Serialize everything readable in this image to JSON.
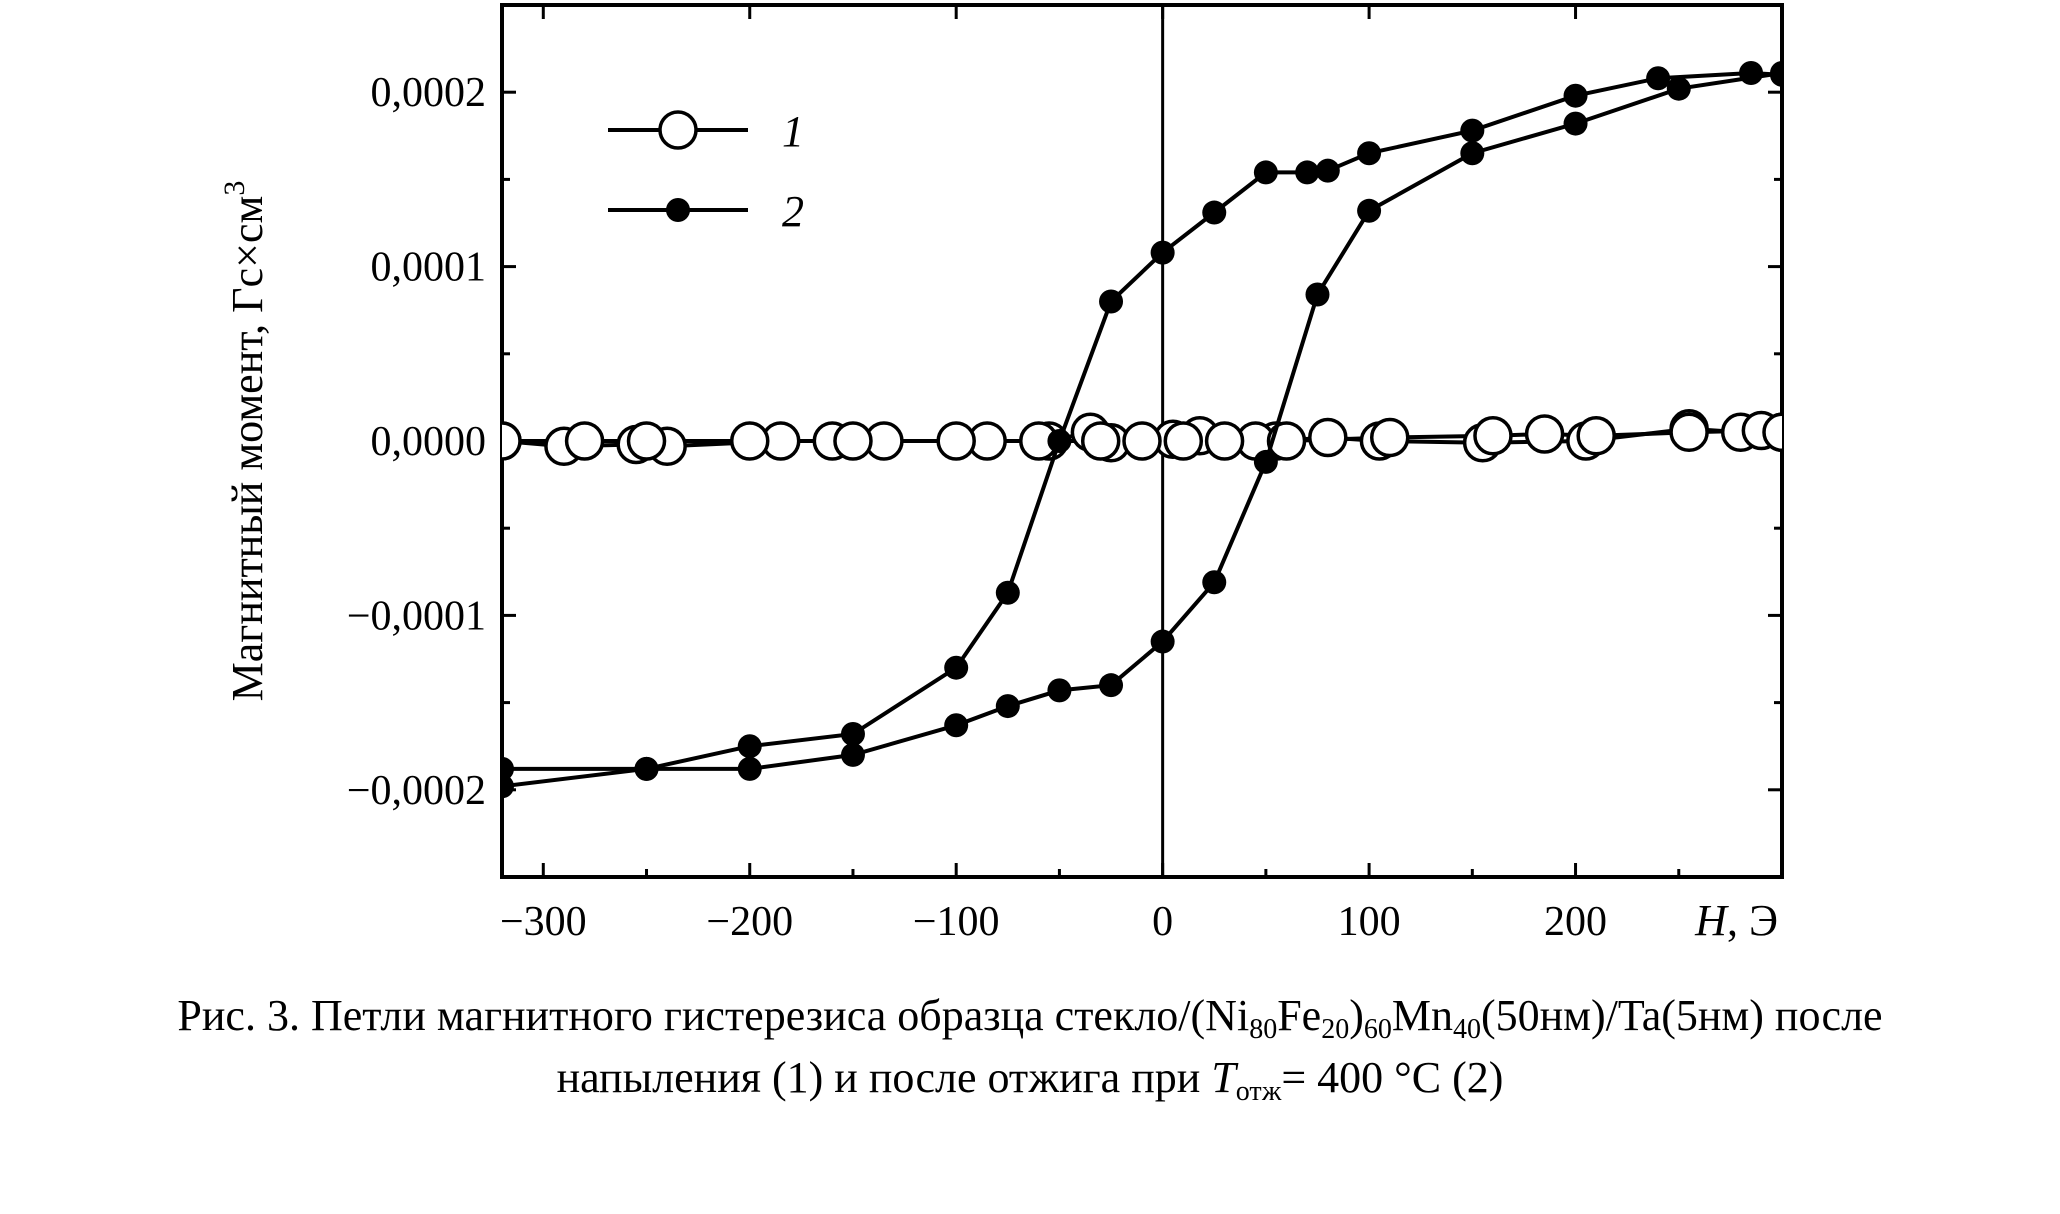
{
  "chart_data": {
    "type": "line",
    "title": "",
    "xlabel": "H, Э",
    "ylabel": "Магнитный момент, Гс×см",
    "ylabel_sup": "3",
    "xlim": [
      -320,
      300
    ],
    "ylim": [
      -0.00025,
      0.00025
    ],
    "xticks": [
      -300,
      -200,
      -100,
      0,
      100,
      200
    ],
    "xtick_labels": [
      "−300",
      "−200",
      "−100",
      "0",
      "100",
      "200"
    ],
    "yticks": [
      0.0002,
      0.0001,
      0.0,
      -0.0001,
      -0.0002
    ],
    "ytick_labels": [
      "0,0002",
      "0,0001",
      "0,0000",
      "−0,0001",
      "−0,0002"
    ],
    "grid": false,
    "legend_position": "top-left",
    "series": [
      {
        "name": "1",
        "marker": "open-circle",
        "branches": [
          {
            "x": [
              300,
              280,
              255,
              205,
              155,
              105,
              80,
              55,
              45,
              18,
              5,
              -25,
              -35,
              -55,
              -85,
              -135,
              -160,
              -185,
              -240,
              -255,
              -290,
              -320
            ],
            "y": [
              5e-06,
              5e-06,
              7e-06,
              0.0,
              -1e-06,
              0.0,
              2e-06,
              0.0,
              0.0,
              3e-06,
              1e-06,
              -1e-06,
              5e-06,
              0.0,
              0.0,
              0.0,
              0.0,
              0.0,
              -3e-06,
              -2e-06,
              -3e-06,
              0.0
            ]
          },
          {
            "x": [
              -320,
              -280,
              -250,
              -200,
              -150,
              -100,
              -60,
              -30,
              -10,
              10,
              30,
              60,
              110,
              160,
              185,
              210,
              255,
              290,
              300
            ],
            "y": [
              0.0,
              0.0,
              0.0,
              0.0,
              0.0,
              0.0,
              0.0,
              0.0,
              0.0,
              0.0,
              0.0,
              0.0,
              2e-06,
              3e-06,
              4e-06,
              3e-06,
              5e-06,
              6e-06,
              5e-06
            ]
          }
        ]
      },
      {
        "name": "2",
        "marker": "filled-circle",
        "branches": [
          {
            "x": [
              300,
              285,
              240,
              200,
              150,
              100,
              80,
              70,
              50,
              25,
              0,
              -25,
              -50,
              -75,
              -100,
              -150,
              -200,
              -250,
              -320
            ],
            "y": [
              0.00021,
              0.000211,
              0.000208,
              0.000198,
              0.000178,
              0.000165,
              0.000155,
              0.000154,
              0.000154,
              0.000131,
              0.000108,
              8e-05,
              0.0,
              -8.7e-05,
              -0.00013,
              -0.000168,
              -0.000175,
              -0.000188,
              -0.000188
            ]
          },
          {
            "x": [
              -320,
              -250,
              -200,
              -150,
              -100,
              -75,
              -50,
              -25,
              0,
              25,
              50,
              75,
              100,
              150,
              200,
              250,
              300
            ],
            "y": [
              -0.000198,
              -0.000188,
              -0.000188,
              -0.00018,
              -0.000163,
              -0.000152,
              -0.000143,
              -0.00014,
              -0.000115,
              -8.1e-05,
              -1.2e-05,
              8.4e-05,
              0.000132,
              0.000165,
              0.000182,
              0.000202,
              0.000211
            ]
          }
        ]
      }
    ]
  },
  "caption": {
    "line1": {
      "t1": "Рис. 3. Петли магнитного гистерезиса образца стекло/(Ni",
      "s1": "80",
      "t2": "Fe",
      "s2": "20",
      "t3": ")",
      "s3": "60",
      "t4": "Mn",
      "s4": "40",
      "t5": "(50нм)/Ta(5нм) после"
    },
    "line2": {
      "t1": "напыления (1) и после отжига при ",
      "t2": "T",
      "s1": "отж",
      "t3": "= 400 °C (2)"
    }
  }
}
